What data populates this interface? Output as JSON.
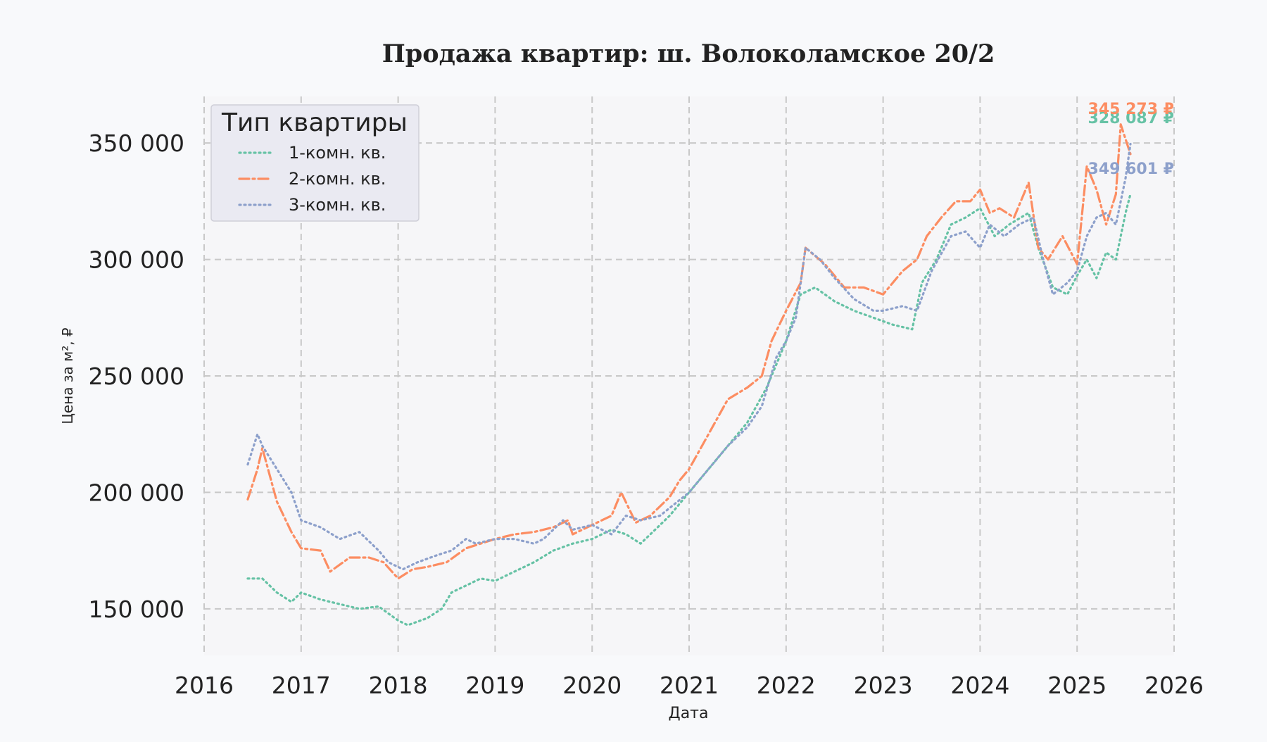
{
  "chart_data": {
    "type": "line",
    "title": "Продажа квартир: ш. Волоколамское 20/2",
    "xlabel": "Дата",
    "ylabel": "Цена за м², ₽",
    "xlim": [
      2016,
      2026
    ],
    "ylim": [
      130000,
      370000
    ],
    "x_ticks": [
      2016,
      2017,
      2018,
      2019,
      2020,
      2021,
      2022,
      2023,
      2024,
      2025,
      2026
    ],
    "x_tick_labels": [
      "2016",
      "2017",
      "2018",
      "2019",
      "2020",
      "2021",
      "2022",
      "2023",
      "2024",
      "2025",
      "2026"
    ],
    "y_ticks": [
      150000,
      200000,
      250000,
      300000,
      350000
    ],
    "y_tick_labels": [
      "150 000",
      "200 000",
      "250 000",
      "300 000",
      "350 000"
    ],
    "grid": true,
    "legend": {
      "title": "Тип квартиры",
      "position": "top-left"
    },
    "series": [
      {
        "name": "1-комн. кв.",
        "color": "#66c2a5",
        "dash": "dotted",
        "end_label": "328 087 ₽",
        "x": [
          2016.45,
          2016.6,
          2016.75,
          2016.9,
          2017.0,
          2017.2,
          2017.4,
          2017.6,
          2017.8,
          2018.0,
          2018.1,
          2018.3,
          2018.45,
          2018.55,
          2018.7,
          2018.85,
          2019.0,
          2019.2,
          2019.4,
          2019.6,
          2019.8,
          2020.0,
          2020.2,
          2020.35,
          2020.5,
          2020.65,
          2020.8,
          2021.0,
          2021.2,
          2021.4,
          2021.6,
          2021.8,
          2022.0,
          2022.15,
          2022.3,
          2022.5,
          2022.7,
          2022.9,
          2023.1,
          2023.3,
          2023.4,
          2023.55,
          2023.7,
          2023.85,
          2024.0,
          2024.15,
          2024.3,
          2024.5,
          2024.6,
          2024.75,
          2024.9,
          2025.0,
          2025.1,
          2025.2,
          2025.3,
          2025.4,
          2025.5,
          2025.55
        ],
        "y": [
          163000,
          163000,
          157000,
          153000,
          157000,
          154000,
          152000,
          150000,
          151000,
          145000,
          143000,
          146000,
          150000,
          157000,
          160000,
          163000,
          162000,
          166000,
          170000,
          175000,
          178000,
          180000,
          184000,
          182000,
          178000,
          184000,
          190000,
          200000,
          210000,
          220000,
          230000,
          245000,
          265000,
          285000,
          288000,
          282000,
          278000,
          275000,
          272000,
          270000,
          290000,
          300000,
          315000,
          318000,
          322000,
          310000,
          315000,
          320000,
          305000,
          288000,
          285000,
          293000,
          300000,
          292000,
          303000,
          300000,
          320000,
          328087
        ]
      },
      {
        "name": "2-комн. кв.",
        "color": "#fc8d62",
        "dash": "dashdot",
        "end_label": "345 273 ₽",
        "x": [
          2016.45,
          2016.55,
          2016.6,
          2016.75,
          2016.9,
          2017.0,
          2017.2,
          2017.3,
          2017.5,
          2017.7,
          2017.85,
          2018.0,
          2018.15,
          2018.3,
          2018.5,
          2018.7,
          2018.85,
          2019.0,
          2019.2,
          2019.4,
          2019.6,
          2019.75,
          2019.8,
          2020.0,
          2020.2,
          2020.3,
          2020.45,
          2020.6,
          2020.8,
          2020.9,
          2021.0,
          2021.2,
          2021.4,
          2021.6,
          2021.75,
          2021.85,
          2022.0,
          2022.15,
          2022.2,
          2022.4,
          2022.6,
          2022.8,
          2023.0,
          2023.2,
          2023.35,
          2023.45,
          2023.6,
          2023.75,
          2023.9,
          2024.0,
          2024.1,
          2024.2,
          2024.35,
          2024.5,
          2024.6,
          2024.7,
          2024.85,
          2025.0,
          2025.1,
          2025.2,
          2025.3,
          2025.4,
          2025.45,
          2025.55
        ],
        "y": [
          197000,
          210000,
          219000,
          196000,
          183000,
          176000,
          175000,
          166000,
          172000,
          172000,
          170000,
          163000,
          167000,
          168000,
          170000,
          176000,
          178000,
          180000,
          182000,
          183000,
          185000,
          188000,
          182000,
          186000,
          190000,
          200000,
          187000,
          190000,
          198000,
          205000,
          210000,
          225000,
          240000,
          245000,
          250000,
          265000,
          278000,
          290000,
          305000,
          298000,
          288000,
          288000,
          285000,
          295000,
          300000,
          310000,
          318000,
          325000,
          325000,
          330000,
          320000,
          322000,
          318000,
          333000,
          305000,
          300000,
          310000,
          298000,
          340000,
          330000,
          315000,
          328000,
          358000,
          345273
        ]
      },
      {
        "name": "3-комн. кв.",
        "color": "#8da0cb",
        "dash": "dotted",
        "end_label": "349 601 ₽",
        "x": [
          2016.45,
          2016.55,
          2016.6,
          2016.75,
          2016.9,
          2017.0,
          2017.2,
          2017.4,
          2017.6,
          2017.8,
          2017.9,
          2018.05,
          2018.2,
          2018.4,
          2018.55,
          2018.7,
          2018.8,
          2019.0,
          2019.2,
          2019.4,
          2019.5,
          2019.7,
          2019.8,
          2020.0,
          2020.2,
          2020.35,
          2020.5,
          2020.7,
          2020.85,
          2021.0,
          2021.2,
          2021.4,
          2021.6,
          2021.75,
          2021.9,
          2022.0,
          2022.1,
          2022.2,
          2022.35,
          2022.5,
          2022.7,
          2022.9,
          2023.0,
          2023.2,
          2023.35,
          2023.5,
          2023.7,
          2023.85,
          2024.0,
          2024.1,
          2024.25,
          2024.4,
          2024.55,
          2024.65,
          2024.75,
          2024.9,
          2025.0,
          2025.1,
          2025.2,
          2025.3,
          2025.4,
          2025.5,
          2025.55
        ],
        "y": [
          212000,
          225000,
          220000,
          210000,
          200000,
          188000,
          185000,
          180000,
          183000,
          175000,
          170000,
          167000,
          170000,
          173000,
          175000,
          180000,
          178000,
          180000,
          180000,
          178000,
          180000,
          188000,
          184000,
          186000,
          182000,
          190000,
          188000,
          190000,
          195000,
          200000,
          210000,
          220000,
          228000,
          237000,
          258000,
          265000,
          275000,
          305000,
          300000,
          292000,
          283000,
          278000,
          278000,
          280000,
          278000,
          295000,
          310000,
          312000,
          305000,
          315000,
          310000,
          315000,
          318000,
          300000,
          285000,
          290000,
          295000,
          310000,
          318000,
          320000,
          315000,
          335000,
          349601
        ]
      }
    ]
  }
}
